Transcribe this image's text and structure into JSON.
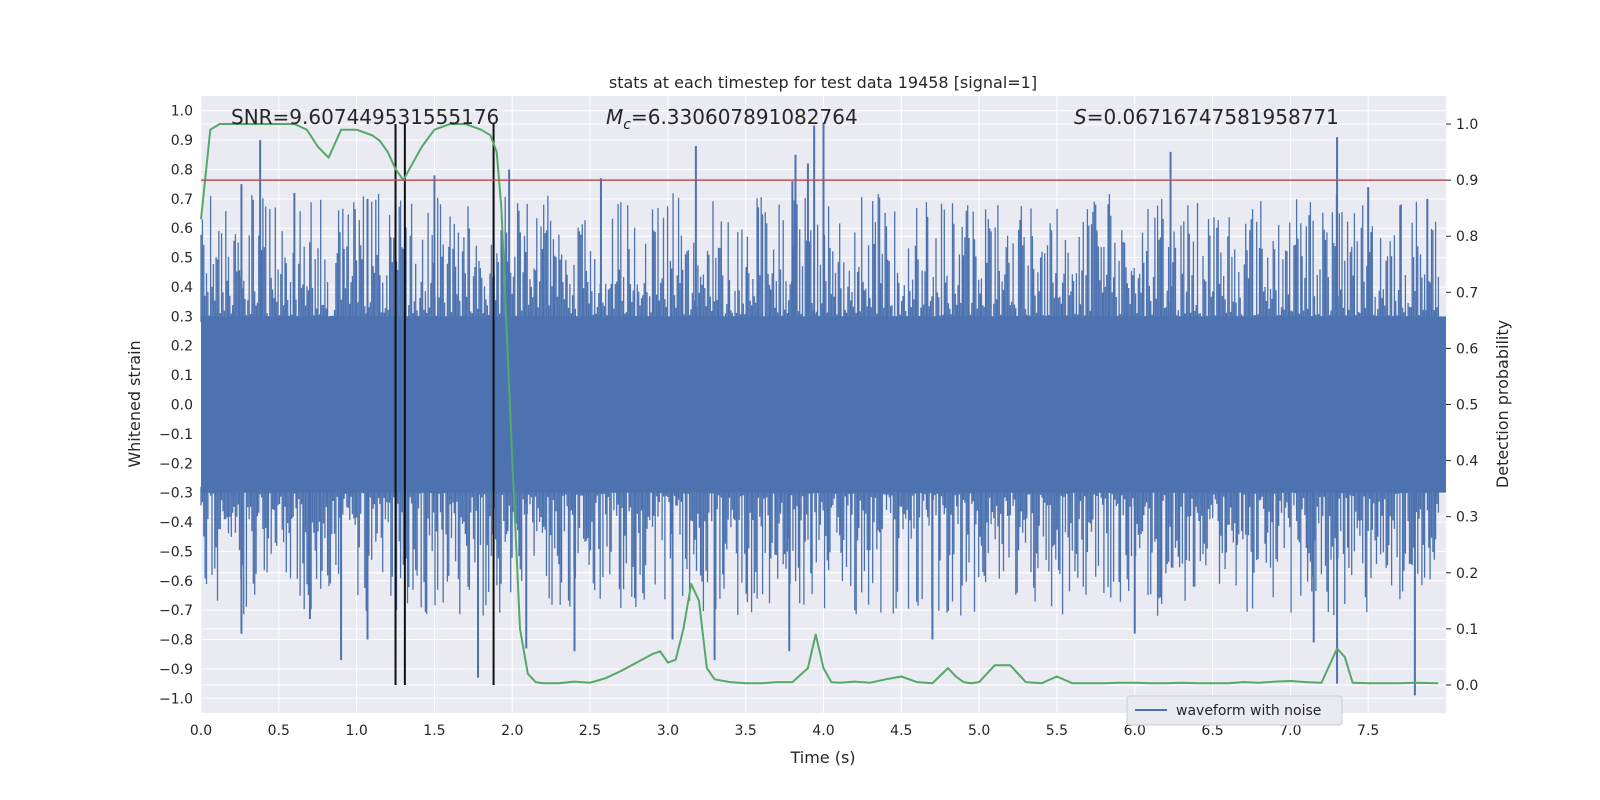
{
  "chart_data": {
    "type": "line",
    "title": "stats at each timestep for test data 19458 [signal=1]",
    "xlabel": "Time (s)",
    "ylabel_left": "Whitened strain",
    "ylabel_right": "Detection probability",
    "xlim": [
      0.0,
      8.0
    ],
    "ylim_left": [
      -1.05,
      1.05
    ],
    "ylim_right": [
      -0.05,
      1.05
    ],
    "x_ticks": [
      "0.0",
      "0.5",
      "1.0",
      "1.5",
      "2.0",
      "2.5",
      "3.0",
      "3.5",
      "4.0",
      "4.5",
      "5.0",
      "5.5",
      "6.0",
      "6.5",
      "7.0",
      "7.5"
    ],
    "y_ticks_left": [
      "1.0",
      "0.9",
      "0.8",
      "0.7",
      "0.6",
      "0.5",
      "0.4",
      "0.3",
      "0.2",
      "0.1",
      "0.0",
      "−0.1",
      "−0.2",
      "−0.3",
      "−0.4",
      "−0.5",
      "−0.6",
      "−0.7",
      "−0.8",
      "−0.9",
      "−1.0"
    ],
    "y_ticks_right": [
      "1.0",
      "0.9",
      "0.8",
      "0.7",
      "0.6",
      "0.5",
      "0.4",
      "0.3",
      "0.2",
      "0.1",
      "0.0"
    ],
    "grid": true,
    "annotations": {
      "snr": "SNR=9.607449531555176",
      "mc_symbol": "M",
      "mc_sub": "c",
      "mc_value": "=6.330607891082764",
      "s_symbol": "S",
      "s_value": "=0.06716747581958771"
    },
    "threshold": 0.9,
    "event_markers_x": [
      1.25,
      1.31,
      1.88
    ],
    "strain_series": {
      "name": "waveform with noise",
      "color": "#4c72b0",
      "band_top": 0.3,
      "band_bottom": -0.3,
      "peaks_pos": [
        [
          0.38,
          0.9
        ],
        [
          0.26,
          0.75
        ],
        [
          0.6,
          0.72
        ],
        [
          1.07,
          0.7
        ],
        [
          1.5,
          0.78
        ],
        [
          1.88,
          0.75
        ],
        [
          1.98,
          0.8
        ],
        [
          2.57,
          0.77
        ],
        [
          3.18,
          0.88
        ],
        [
          3.8,
          0.76
        ],
        [
          3.82,
          0.85
        ],
        [
          3.9,
          0.82
        ],
        [
          3.94,
          0.95
        ],
        [
          4.0,
          0.96
        ],
        [
          6.23,
          0.86
        ],
        [
          7.3,
          0.91
        ],
        [
          7.5,
          0.74
        ],
        [
          7.88,
          0.7
        ]
      ],
      "peaks_neg": [
        [
          0.26,
          -0.78
        ],
        [
          0.7,
          -0.73
        ],
        [
          0.9,
          -0.87
        ],
        [
          1.07,
          -0.8
        ],
        [
          1.25,
          -0.85
        ],
        [
          1.78,
          -0.93
        ],
        [
          2.09,
          -0.83
        ],
        [
          2.4,
          -0.84
        ],
        [
          3.03,
          -0.8
        ],
        [
          3.3,
          -0.87
        ],
        [
          3.78,
          -0.84
        ],
        [
          4.7,
          -0.8
        ],
        [
          6.0,
          -0.78
        ],
        [
          7.15,
          -0.81
        ],
        [
          7.3,
          -0.95
        ],
        [
          7.8,
          -0.99
        ]
      ]
    },
    "probability_series": {
      "name": "Detection probability",
      "color": "#55a868",
      "x": [
        0.0,
        0.06,
        0.12,
        0.2,
        0.3,
        0.45,
        0.6,
        0.68,
        0.75,
        0.82,
        0.9,
        0.95,
        1.0,
        1.05,
        1.1,
        1.15,
        1.2,
        1.25,
        1.3,
        1.36,
        1.42,
        1.5,
        1.6,
        1.7,
        1.8,
        1.86,
        1.9,
        1.93,
        2.0,
        2.05,
        2.1,
        2.15,
        2.2,
        2.3,
        2.4,
        2.5,
        2.55,
        2.6,
        2.7,
        2.8,
        2.9,
        2.95,
        3.0,
        3.05,
        3.1,
        3.15,
        3.2,
        3.25,
        3.3,
        3.4,
        3.5,
        3.6,
        3.7,
        3.8,
        3.9,
        3.95,
        4.0,
        4.05,
        4.1,
        4.2,
        4.3,
        4.4,
        4.5,
        4.6,
        4.7,
        4.8,
        4.85,
        4.9,
        4.95,
        5.0,
        5.1,
        5.2,
        5.3,
        5.4,
        5.5,
        5.6,
        5.7,
        5.8,
        5.9,
        6.0,
        6.1,
        6.2,
        6.3,
        6.4,
        6.5,
        6.6,
        6.7,
        6.8,
        6.9,
        7.0,
        7.1,
        7.2,
        7.3,
        7.35,
        7.4,
        7.5,
        7.6,
        7.7,
        7.8,
        7.95
      ],
      "values": [
        0.83,
        0.99,
        1.0,
        1.0,
        1.0,
        1.0,
        1.0,
        0.99,
        0.96,
        0.94,
        0.99,
        0.99,
        0.99,
        0.985,
        0.98,
        0.97,
        0.95,
        0.92,
        0.9,
        0.93,
        0.96,
        0.99,
        1.0,
        1.0,
        0.99,
        0.98,
        0.95,
        0.85,
        0.4,
        0.1,
        0.02,
        0.005,
        0.003,
        0.003,
        0.006,
        0.004,
        0.008,
        0.012,
        0.025,
        0.04,
        0.055,
        0.06,
        0.04,
        0.045,
        0.1,
        0.18,
        0.15,
        0.03,
        0.01,
        0.005,
        0.003,
        0.003,
        0.005,
        0.005,
        0.03,
        0.09,
        0.03,
        0.005,
        0.004,
        0.006,
        0.004,
        0.01,
        0.015,
        0.005,
        0.003,
        0.03,
        0.015,
        0.005,
        0.003,
        0.005,
        0.035,
        0.035,
        0.005,
        0.003,
        0.015,
        0.003,
        0.003,
        0.003,
        0.004,
        0.004,
        0.003,
        0.003,
        0.004,
        0.003,
        0.003,
        0.003,
        0.005,
        0.004,
        0.006,
        0.007,
        0.005,
        0.004,
        0.065,
        0.05,
        0.004,
        0.003,
        0.003,
        0.003,
        0.004,
        0.003
      ]
    },
    "legend_entries": [
      "waveform with noise"
    ],
    "legend_position": "lower-right"
  }
}
